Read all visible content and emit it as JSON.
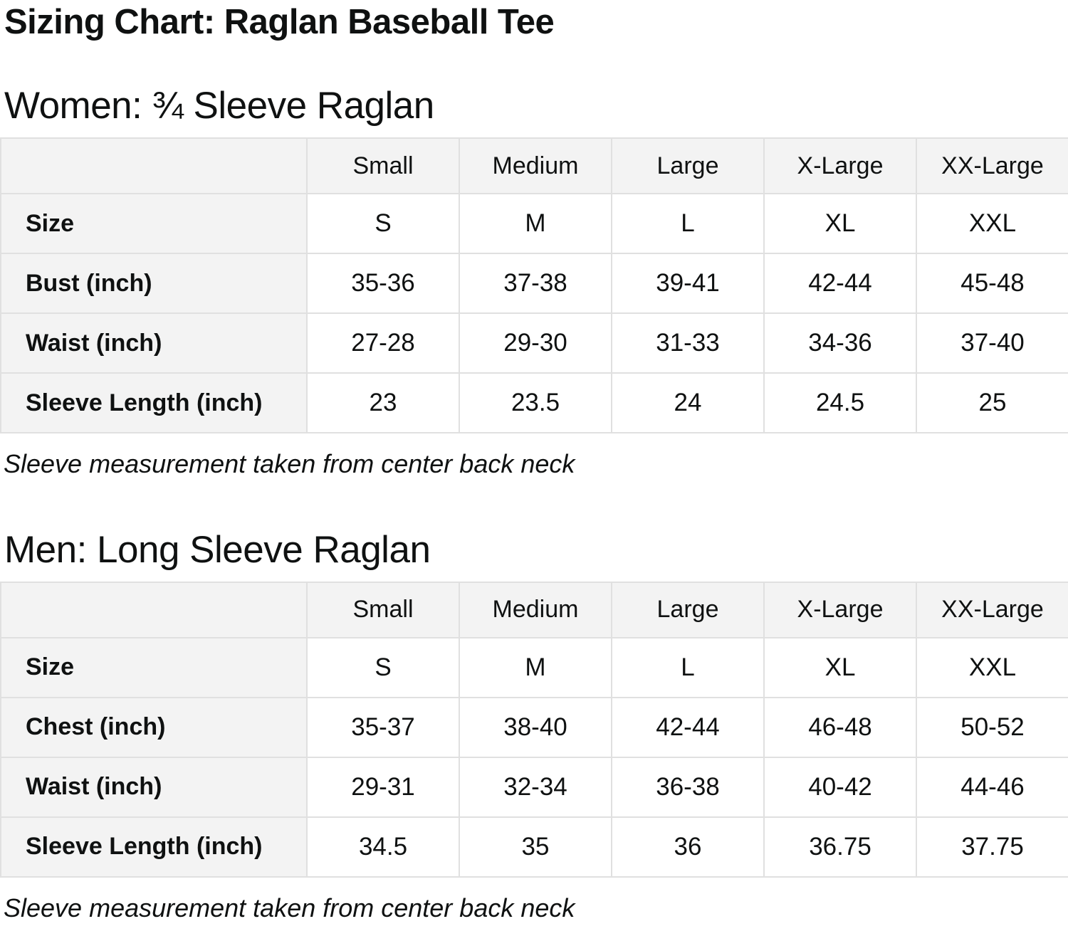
{
  "page": {
    "title": "Sizing Chart: Raglan Baseball Tee"
  },
  "colors": {
    "header_bg": "#f3f3f3",
    "table_border": "#e0e0e0",
    "text": "#0f1111"
  },
  "sections": [
    {
      "heading": "Women: ¾ Sleeve Raglan",
      "footnote": "Sleeve measurement taken from center back neck",
      "table": {
        "col_headers": [
          "Small",
          "Medium",
          "Large",
          "X-Large",
          "XX-Large"
        ],
        "rows": [
          {
            "label": "Size",
            "values": [
              "S",
              "M",
              "L",
              "XL",
              "XXL"
            ]
          },
          {
            "label": "Bust (inch)",
            "values": [
              "35-36",
              "37-38",
              "39-41",
              "42-44",
              "45-48"
            ]
          },
          {
            "label": "Waist (inch)",
            "values": [
              "27-28",
              "29-30",
              "31-33",
              "34-36",
              "37-40"
            ]
          },
          {
            "label": "Sleeve Length (inch)",
            "values": [
              "23",
              "23.5",
              "24",
              "24.5",
              "25"
            ]
          }
        ]
      }
    },
    {
      "heading": "Men: Long Sleeve Raglan",
      "footnote": "Sleeve measurement taken from center back neck",
      "table": {
        "col_headers": [
          "Small",
          "Medium",
          "Large",
          "X-Large",
          "XX-Large"
        ],
        "rows": [
          {
            "label": "Size",
            "values": [
              "S",
              "M",
              "L",
              "XL",
              "XXL"
            ]
          },
          {
            "label": "Chest (inch)",
            "values": [
              "35-37",
              "38-40",
              "42-44",
              "46-48",
              "50-52"
            ]
          },
          {
            "label": "Waist (inch)",
            "values": [
              "29-31",
              "32-34",
              "36-38",
              "40-42",
              "44-46"
            ]
          },
          {
            "label": "Sleeve Length (inch)",
            "values": [
              "34.5",
              "35",
              "36",
              "36.75",
              "37.75"
            ]
          }
        ]
      }
    }
  ]
}
